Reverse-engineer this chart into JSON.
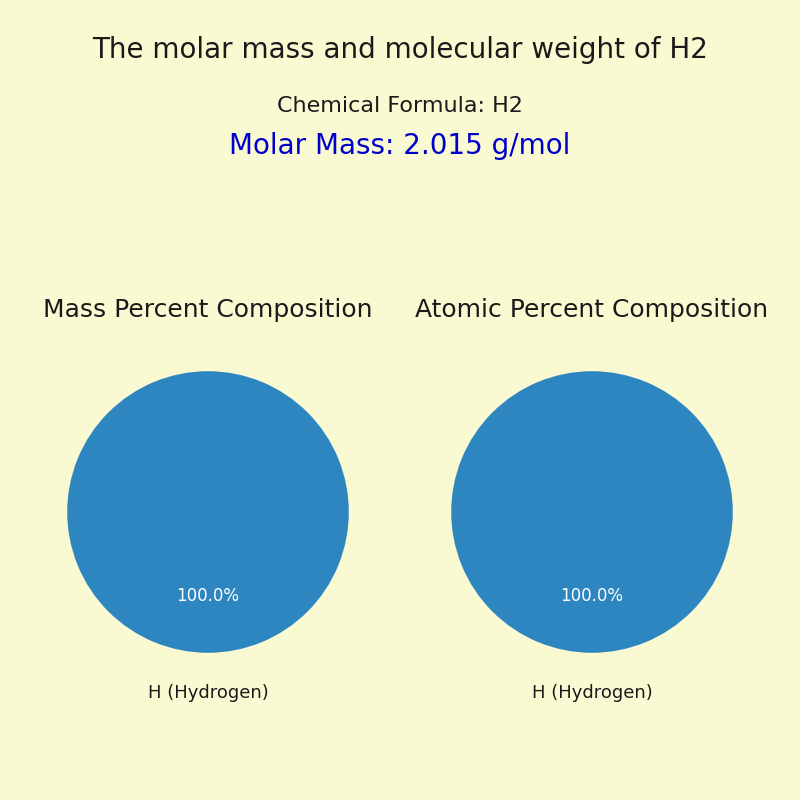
{
  "title": "The molar mass and molecular weight of H2",
  "chemical_formula_label": "Chemical Formula: H2",
  "molar_mass_label": "Molar Mass: 2.015 g/mol",
  "pie_left_title": "Mass Percent Composition",
  "pie_right_title": "Atomic Percent Composition",
  "pie_values": [
    100.0
  ],
  "pie_labels": [
    "H (Hydrogen)"
  ],
  "pie_colors": [
    "#2e86c1"
  ],
  "background_color": "#fafad2",
  "title_fontsize": 20,
  "subtitle_fontsize": 16,
  "molar_mass_fontsize": 20,
  "pie_title_fontsize": 18,
  "pie_label_fontsize": 13,
  "autopct_fontsize": 12,
  "title_color": "#1a1a1a",
  "formula_color": "#1a1a1a",
  "molar_mass_color": "#0000cc",
  "pie_title_color": "#1a1a1a",
  "pie_label_color": "#1a1a1a",
  "autopct_color": "white"
}
